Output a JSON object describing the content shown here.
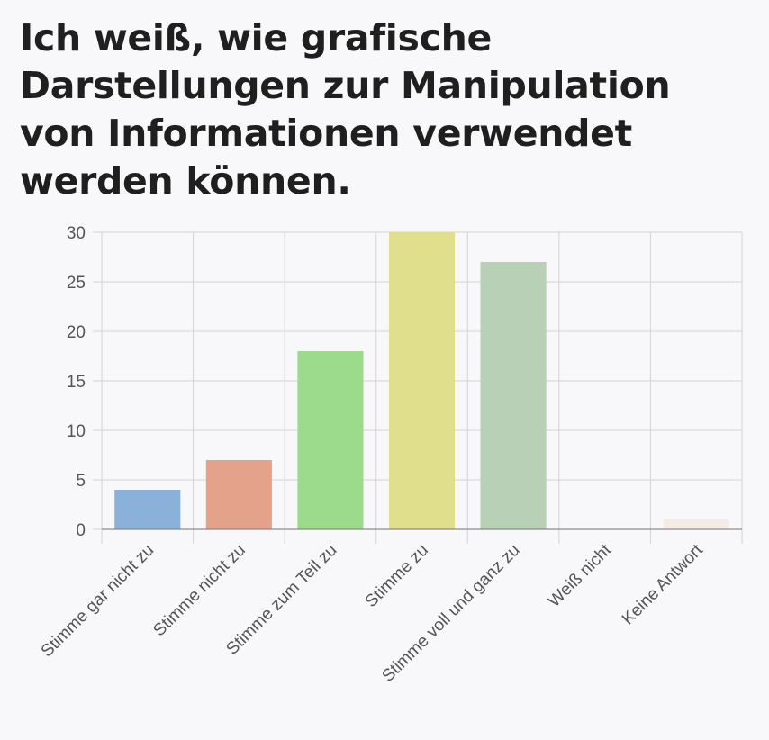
{
  "title": "Ich weiß, wie grafische Darstellungen zur Manipulation von Informationen verwendet werden können.",
  "chart_data": {
    "type": "bar",
    "categories": [
      "Stimme gar nicht zu",
      "Stimme nicht zu",
      "Stimme zum Teil zu",
      "Stimme zu",
      "Stimme voll und ganz zu",
      "Weiß nicht",
      "Keine Antwort"
    ],
    "values": [
      4,
      7,
      18,
      30,
      27,
      0,
      1
    ],
    "colors": [
      "#8ab1da",
      "#e4a28b",
      "#9cdb8c",
      "#e0e08c",
      "#b8d0b5",
      "#d9d9d9",
      "#f6ece6"
    ],
    "ylim": [
      0,
      30
    ],
    "yticks": [
      0,
      5,
      10,
      15,
      20,
      25,
      30
    ],
    "grid": true,
    "xlabel": "",
    "ylabel": ""
  }
}
